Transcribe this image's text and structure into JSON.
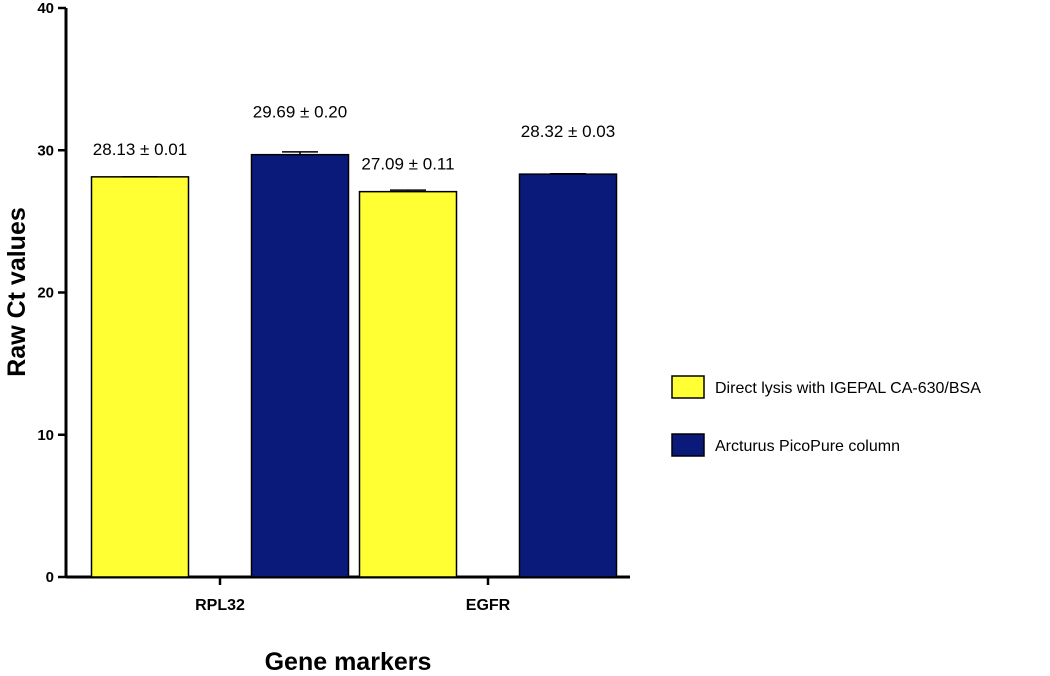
{
  "chart_data": {
    "type": "bar",
    "categories": [
      "RPL32",
      "EGFR"
    ],
    "series": [
      {
        "name": "Direct lysis with IGEPAL CA-630/BSA",
        "color": "#ffff33",
        "values": [
          28.13,
          27.09
        ],
        "errors": [
          0.01,
          0.11
        ],
        "labels": [
          "28.13 ± 0.01",
          "27.09 ± 0.11"
        ]
      },
      {
        "name": "Arcturus PicoPure column",
        "color": "#0a1a7a",
        "values": [
          29.69,
          28.32
        ],
        "errors": [
          0.2,
          0.03
        ],
        "labels": [
          "29.69 ± 0.20",
          "28.32 ± 0.03"
        ]
      }
    ],
    "title": "",
    "xlabel": "Gene markers",
    "ylabel": "Raw Ct values",
    "ylim": [
      0,
      40
    ],
    "yticks": [
      0,
      10,
      20,
      30,
      40
    ],
    "grid": false,
    "legend_position": "right"
  }
}
